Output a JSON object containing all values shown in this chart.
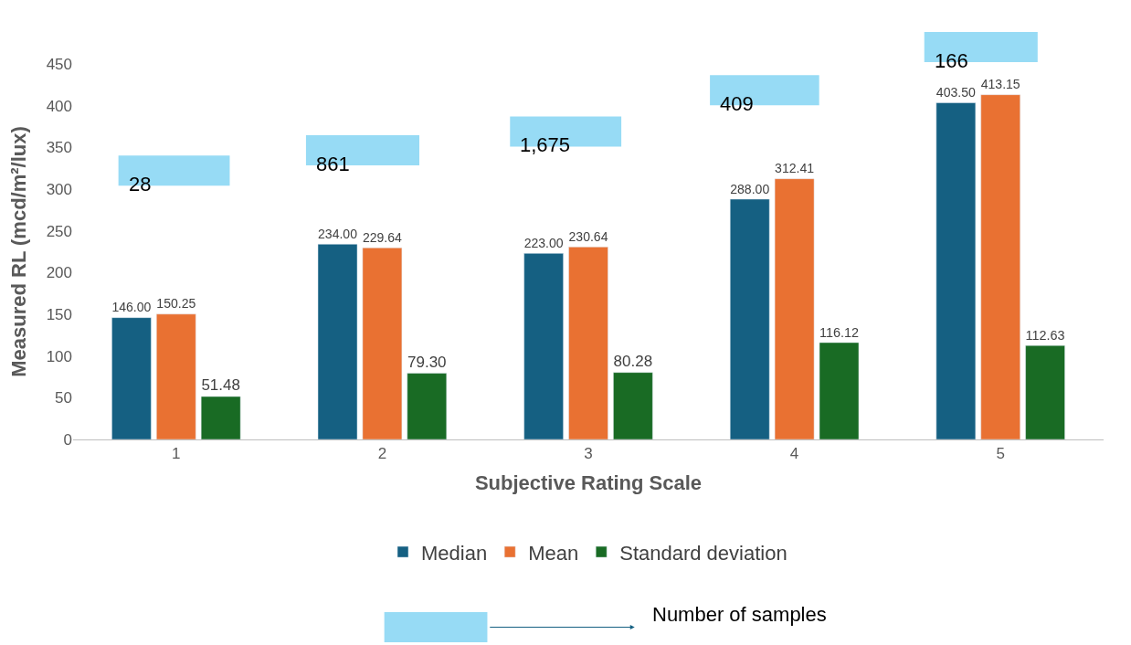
{
  "chart_data": {
    "type": "bar",
    "xlabel": "Subjective Rating Scale",
    "ylabel": "Measured RL (mcd/m²/lux)",
    "categories": [
      "1",
      "2",
      "3",
      "4",
      "5"
    ],
    "series": [
      {
        "name": "Median",
        "color": "#156082",
        "values": [
          146,
          234,
          223,
          288,
          403.5
        ],
        "value_labels": [
          "146.00",
          "234.00",
          "223.00",
          "288.00",
          "403.50"
        ]
      },
      {
        "name": "Mean",
        "color": "#e97132",
        "values": [
          150.25,
          229.64,
          230.64,
          312.41,
          413.15
        ],
        "value_labels": [
          "150.25",
          "229.64",
          "230.64",
          "312.41",
          "413.15"
        ]
      },
      {
        "name": "Standard deviation",
        "color": "#196b24",
        "values": [
          51.48,
          79.3,
          80.28,
          116.12,
          112.63
        ],
        "value_labels": [
          "51.48",
          "79.30",
          "80.28",
          "116.12",
          "112.63"
        ]
      }
    ],
    "ylim": [
      0,
      450
    ],
    "yticks": [
      0,
      50,
      100,
      150,
      200,
      250,
      300,
      350,
      400,
      450
    ],
    "legend": "bottom",
    "annotations": [
      "28",
      "861",
      "1,675",
      "409",
      "166",
      "Number of samples"
    ]
  }
}
